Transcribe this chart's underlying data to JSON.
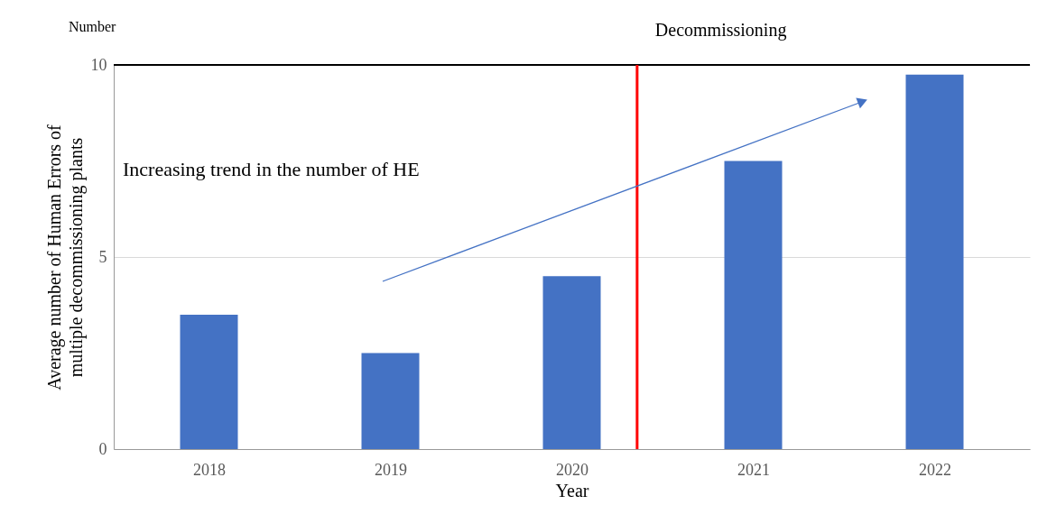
{
  "chart_data": {
    "type": "bar",
    "ylabel": "Average number of Human Errors of multiple decommissioning plants",
    "xlabel": "Year",
    "x": [
      2018,
      2019,
      2020,
      2021,
      2022
    ],
    "values": [
      3.5,
      2.5,
      4.5,
      7.5,
      9.75
    ],
    "color": "#4472c4",
    "xlim": [
      2017.5,
      2022.5
    ],
    "xticks": [
      2018,
      2019,
      2020,
      2021,
      2022
    ],
    "ylim": [
      0,
      10
    ],
    "yticks": [
      0,
      5,
      10
    ],
    "grid": "y",
    "ref_lines": [
      {
        "axis": "x",
        "value": 2020.36,
        "label": "Decommissioning",
        "color": "#ff0000"
      }
    ],
    "annotations": [
      "Number",
      "Increasing trend in the number of HE"
    ]
  }
}
